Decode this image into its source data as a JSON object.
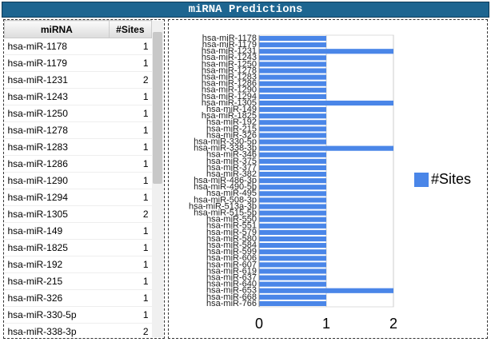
{
  "title": "miRNA Predictions",
  "table": {
    "columns": [
      "miRNA",
      "#Sites"
    ],
    "rows": [
      [
        "hsa-miR-1178",
        1
      ],
      [
        "hsa-miR-1179",
        1
      ],
      [
        "hsa-miR-1231",
        2
      ],
      [
        "hsa-miR-1243",
        1
      ],
      [
        "hsa-miR-1250",
        1
      ],
      [
        "hsa-miR-1278",
        1
      ],
      [
        "hsa-miR-1283",
        1
      ],
      [
        "hsa-miR-1286",
        1
      ],
      [
        "hsa-miR-1290",
        1
      ],
      [
        "hsa-miR-1294",
        1
      ],
      [
        "hsa-miR-1305",
        2
      ],
      [
        "hsa-miR-149",
        1
      ],
      [
        "hsa-miR-1825",
        1
      ],
      [
        "hsa-miR-192",
        1
      ],
      [
        "hsa-miR-215",
        1
      ],
      [
        "hsa-miR-326",
        1
      ],
      [
        "hsa-miR-330-5p",
        1
      ],
      [
        "hsa-miR-338-3p",
        2
      ]
    ]
  },
  "chart_data": {
    "type": "barh",
    "categories": [
      "hsa-miR-1178",
      "hsa-miR-1179",
      "hsa-miR-1231",
      "hsa-miR-1243",
      "hsa-miR-1250",
      "hsa-miR-1278",
      "hsa-miR-1283",
      "hsa-miR-1286",
      "hsa-miR-1290",
      "hsa-miR-1294",
      "hsa-miR-1305",
      "hsa-miR-149",
      "hsa-miR-1825",
      "hsa-miR-192",
      "hsa-miR-215",
      "hsa-miR-326",
      "hsa-miR-330-5p",
      "hsa-miR-338-3p",
      "hsa-miR-346",
      "hsa-miR-375",
      "hsa-miR-377",
      "hsa-miR-382",
      "hsa-miR-486-3p",
      "hsa-miR-490-5p",
      "hsa-miR-495",
      "hsa-miR-508-3p",
      "hsa-miR-513a-3p",
      "hsa-miR-515-5p",
      "hsa-miR-550",
      "hsa-miR-551",
      "hsa-miR-579",
      "hsa-miR-580",
      "hsa-miR-584",
      "hsa-miR-599",
      "hsa-miR-606",
      "hsa-miR-607",
      "hsa-miR-619",
      "hsa-miR-637",
      "hsa-miR-640",
      "hsa-miR-653",
      "hsa-miR-668",
      "hsa-miR-766"
    ],
    "series": [
      {
        "name": "#Sites",
        "color": "#4a86e8",
        "values": [
          1,
          1,
          2,
          1,
          1,
          1,
          1,
          1,
          1,
          1,
          2,
          1,
          1,
          1,
          1,
          1,
          1,
          2,
          1,
          1,
          1,
          1,
          1,
          1,
          1,
          1,
          1,
          1,
          1,
          1,
          1,
          1,
          1,
          1,
          1,
          1,
          1,
          1,
          1,
          2,
          1,
          1
        ]
      }
    ],
    "xlim": [
      0,
      2
    ],
    "xticks": [
      0,
      1,
      2
    ],
    "grid": true,
    "legend": "right"
  }
}
